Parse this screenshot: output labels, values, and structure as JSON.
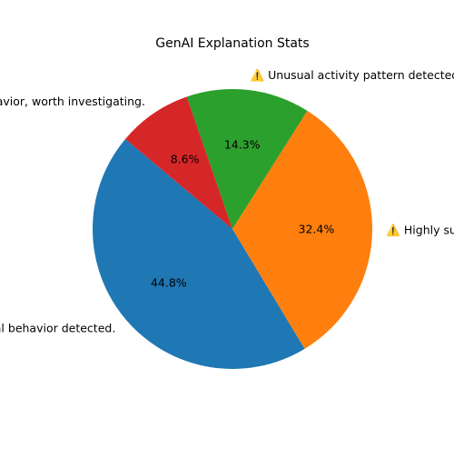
{
  "chart_data": {
    "type": "pie",
    "title": "GenAI Explanation Stats",
    "start_angle_deg": 140,
    "direction": "counterclockwise",
    "slices": [
      {
        "label": "✅ Normal behavior detected.",
        "value": 44.8,
        "pct_label": "44.8%",
        "color": "#1f77b4"
      },
      {
        "label": "⚠️ Highly suspicious activity, immediate action required.",
        "value": 32.4,
        "pct_label": "32.4%",
        "color": "#ff7f0e"
      },
      {
        "label": "⚠️ Unusual activity pattern detected.",
        "value": 14.3,
        "pct_label": "14.3%",
        "color": "#2ca02c"
      },
      {
        "label": "❓ Unclear behavior, worth investigating.",
        "value": 8.6,
        "pct_label": "8.6%",
        "color": "#d62728"
      }
    ]
  }
}
